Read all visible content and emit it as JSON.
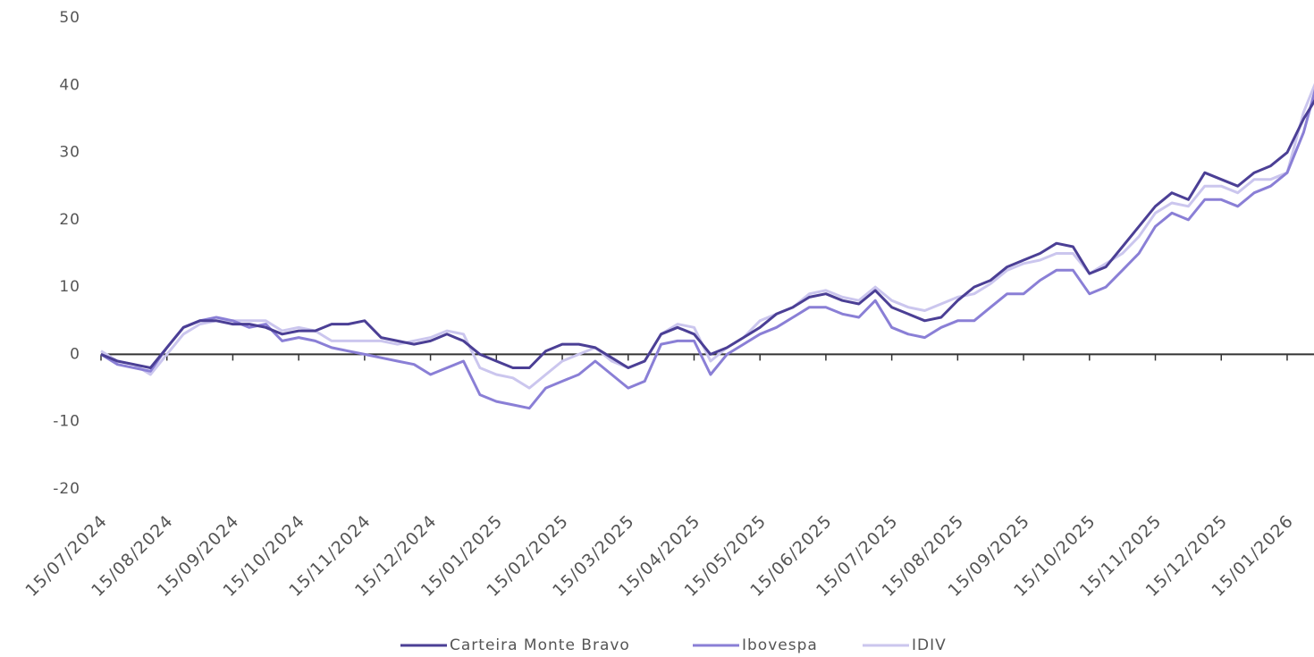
{
  "chart_data": {
    "type": "line",
    "categories": [
      "15/07/2024",
      null,
      null,
      null,
      "15/08/2024",
      null,
      null,
      null,
      "15/09/2024",
      null,
      null,
      null,
      "15/10/2024",
      null,
      null,
      null,
      "15/11/2024",
      null,
      null,
      null,
      "15/12/2024",
      null,
      null,
      null,
      "15/01/2025",
      null,
      null,
      null,
      "15/02/2025",
      null,
      null,
      null,
      "15/03/2025",
      null,
      null,
      null,
      "15/04/2025",
      null,
      null,
      null,
      "15/05/2025",
      null,
      null,
      null,
      "15/06/2025",
      null,
      null,
      null,
      "15/07/2025",
      null,
      null,
      null,
      "15/08/2025",
      null,
      null,
      null,
      "15/09/2025",
      null,
      null,
      null,
      "15/10/2025",
      null,
      null,
      null,
      "15/11/2025",
      null,
      null,
      null,
      "15/12/2025",
      null,
      null,
      null,
      "15/01/2026",
      null,
      null
    ],
    "series": [
      {
        "name": "Carteira Monte Bravo",
        "color": "#4b3f95",
        "values": [
          0,
          -1,
          -1.5,
          -2,
          1,
          4,
          5,
          5,
          4.5,
          4.5,
          4,
          3,
          3.5,
          3.5,
          4.5,
          4.5,
          5,
          2.5,
          2,
          1.5,
          2,
          3,
          2,
          0,
          -1,
          -2,
          -2,
          0.5,
          1.5,
          1.5,
          1,
          -0.5,
          -2,
          -1,
          3,
          4,
          3,
          0,
          1,
          2.5,
          4,
          6,
          7,
          8.5,
          9,
          8,
          7.5,
          9.5,
          7,
          6,
          5,
          5.5,
          8,
          10,
          11,
          13,
          14,
          15,
          16.5,
          16,
          12,
          13,
          16,
          19,
          22,
          24,
          23,
          27,
          26,
          25,
          27,
          28,
          30,
          35,
          39
        ]
      },
      {
        "name": "Ibovespa",
        "color": "#8a7fd6",
        "values": [
          0,
          -1.5,
          -2,
          -2.5,
          1,
          4,
          5,
          5.5,
          5,
          4,
          4.5,
          2,
          2.5,
          2,
          1,
          0.5,
          0,
          -0.5,
          -1,
          -1.5,
          -3,
          -2,
          -1,
          -6,
          -7,
          -7.5,
          -8,
          -5,
          -4,
          -3,
          -1,
          -3,
          -5,
          -4,
          1.5,
          2,
          2,
          -3,
          0,
          1.5,
          3,
          4,
          5.5,
          7,
          7,
          6,
          5.5,
          8,
          4,
          3,
          2.5,
          4,
          5,
          5,
          7,
          9,
          9,
          11,
          12.5,
          12.5,
          9,
          10,
          12.5,
          15,
          19,
          21,
          20,
          23,
          23,
          22,
          24,
          25,
          27,
          33,
          42
        ]
      },
      {
        "name": "IDIV",
        "color": "#cbc6ee",
        "values": [
          0.5,
          -1,
          -1.5,
          -3,
          0,
          3,
          4.5,
          5,
          5,
          5,
          5,
          3.5,
          4,
          3.5,
          2,
          2,
          2,
          2,
          1.5,
          2,
          2.5,
          3.5,
          3,
          -2,
          -3,
          -3.5,
          -5,
          -3,
          -1,
          0,
          1,
          -1,
          -2,
          -1,
          3,
          4.5,
          4,
          -1,
          1,
          2.5,
          5,
          6,
          7,
          9,
          9.5,
          8.5,
          8,
          10,
          8,
          7,
          6.5,
          7.5,
          8.5,
          9,
          10.5,
          12.5,
          13.5,
          14,
          15,
          15,
          12,
          13.5,
          15,
          17.5,
          21,
          22.5,
          22,
          25,
          25,
          24,
          26,
          26,
          27,
          36,
          42
        ]
      }
    ],
    "ylim": [
      -20,
      50
    ],
    "yticks": [
      -20,
      -10,
      0,
      10,
      20,
      30,
      40,
      50
    ]
  }
}
